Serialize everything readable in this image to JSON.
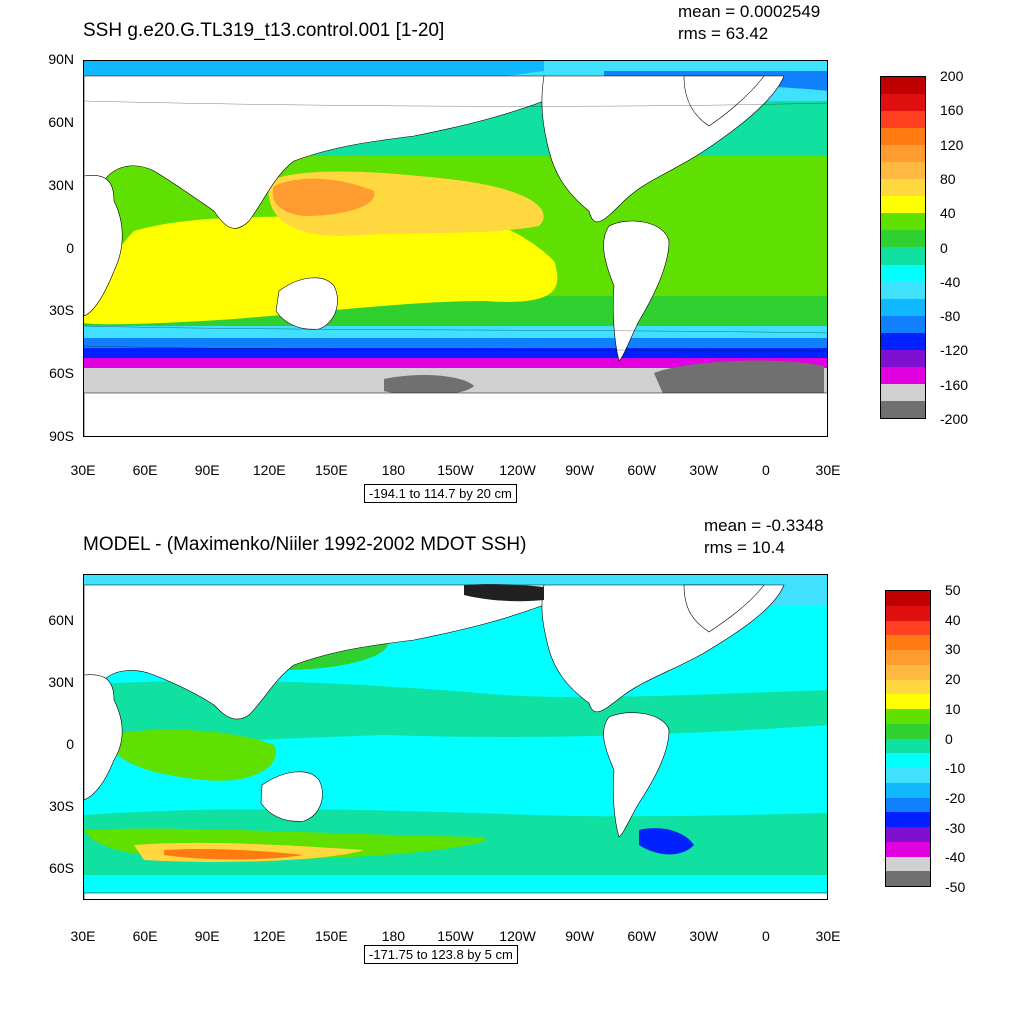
{
  "top": {
    "title": "SSH g.e20.G.TL319_t13.control.001 [1-20]",
    "mean": "mean = 0.0002549",
    "rms": "rms = 63.42",
    "range_note": "-194.1 to 114.7 by 20 cm",
    "lat_labels": [
      "90N",
      "60N",
      "30N",
      "0",
      "30S",
      "60S",
      "90S"
    ],
    "lon_labels": [
      "30E",
      "60E",
      "90E",
      "120E",
      "150E",
      "180",
      "150W",
      "120W",
      "90W",
      "60W",
      "30W",
      "0",
      "30E"
    ],
    "colorbar_labels": [
      "200",
      "160",
      "120",
      "80",
      "40",
      "0",
      "-40",
      "-80",
      "-120",
      "-160",
      "-200"
    ],
    "colorbar_colors": [
      "#c00000",
      "#e01010",
      "#ff4020",
      "#ff7a10",
      "#ff9c30",
      "#ffb840",
      "#ffd840",
      "#ffff00",
      "#60e000",
      "#30d030",
      "#10e0a0",
      "#00ffff",
      "#40e0ff",
      "#10b8ff",
      "#1080ff",
      "#0020ff",
      "#8010d0",
      "#e000e0",
      "#d0d0d0",
      "#707070"
    ]
  },
  "bottom": {
    "title": "MODEL - (Maximenko/Niiler 1992-2002 MDOT SSH)",
    "mean": "mean = -0.3348",
    "rms": "rms = 10.4",
    "range_note": "-171.75 to 123.8 by 5 cm",
    "lat_labels": [
      "60N",
      "30N",
      "0",
      "30S",
      "60S"
    ],
    "lon_labels": [
      "30E",
      "60E",
      "90E",
      "120E",
      "150E",
      "180",
      "150W",
      "120W",
      "90W",
      "60W",
      "30W",
      "0",
      "30E"
    ],
    "colorbar_labels": [
      "50",
      "40",
      "30",
      "20",
      "10",
      "0",
      "-10",
      "-20",
      "-30",
      "-40",
      "-50"
    ],
    "colorbar_colors": [
      "#c00000",
      "#e01010",
      "#ff4020",
      "#ff7a10",
      "#ff9c30",
      "#ffb840",
      "#ffd840",
      "#ffff00",
      "#60e000",
      "#30d030",
      "#10e0a0",
      "#00ffff",
      "#40e0ff",
      "#10b8ff",
      "#1080ff",
      "#0020ff",
      "#8010d0",
      "#e000e0",
      "#d0d0d0",
      "#707070"
    ]
  }
}
